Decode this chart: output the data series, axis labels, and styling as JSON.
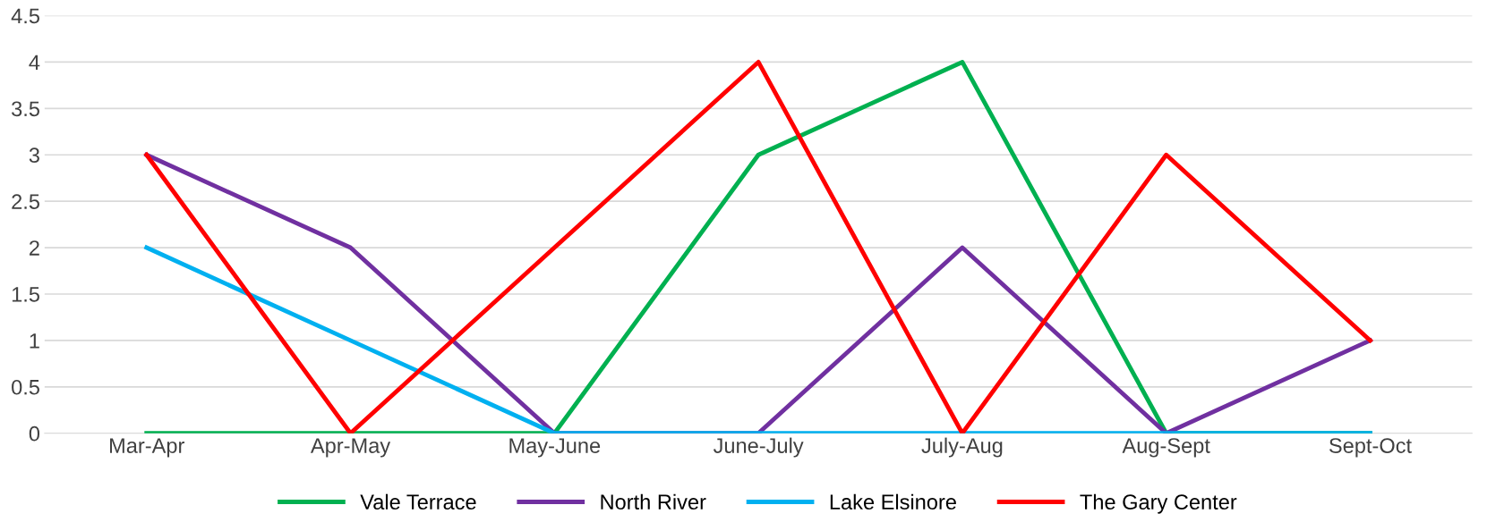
{
  "chart_data": {
    "type": "line",
    "categories": [
      "Mar-Apr",
      "Apr-May",
      "May-June",
      "June-July",
      "July-Aug",
      "Aug-Sept",
      "Sept-Oct"
    ],
    "series": [
      {
        "name": "Vale Terrace",
        "color": "#00b050",
        "values": [
          0,
          0,
          0,
          3,
          4,
          0,
          0
        ]
      },
      {
        "name": "North River",
        "color": "#7030a0",
        "values": [
          3,
          2,
          0,
          0,
          2,
          0,
          1
        ]
      },
      {
        "name": "Lake Elsinore",
        "color": "#00b0f0",
        "values": [
          2,
          1,
          0,
          0,
          0,
          0,
          0
        ]
      },
      {
        "name": "The Gary Center",
        "color": "#ff0000",
        "values": [
          3,
          0,
          2,
          4,
          0,
          3,
          1
        ]
      }
    ],
    "ylim": [
      0,
      4.5
    ],
    "yticks": [
      0,
      0.5,
      1,
      1.5,
      2,
      2.5,
      3,
      3.5,
      4,
      4.5
    ],
    "grid": "y",
    "legend": "bottom",
    "marker": "none",
    "line_style": "solid"
  }
}
